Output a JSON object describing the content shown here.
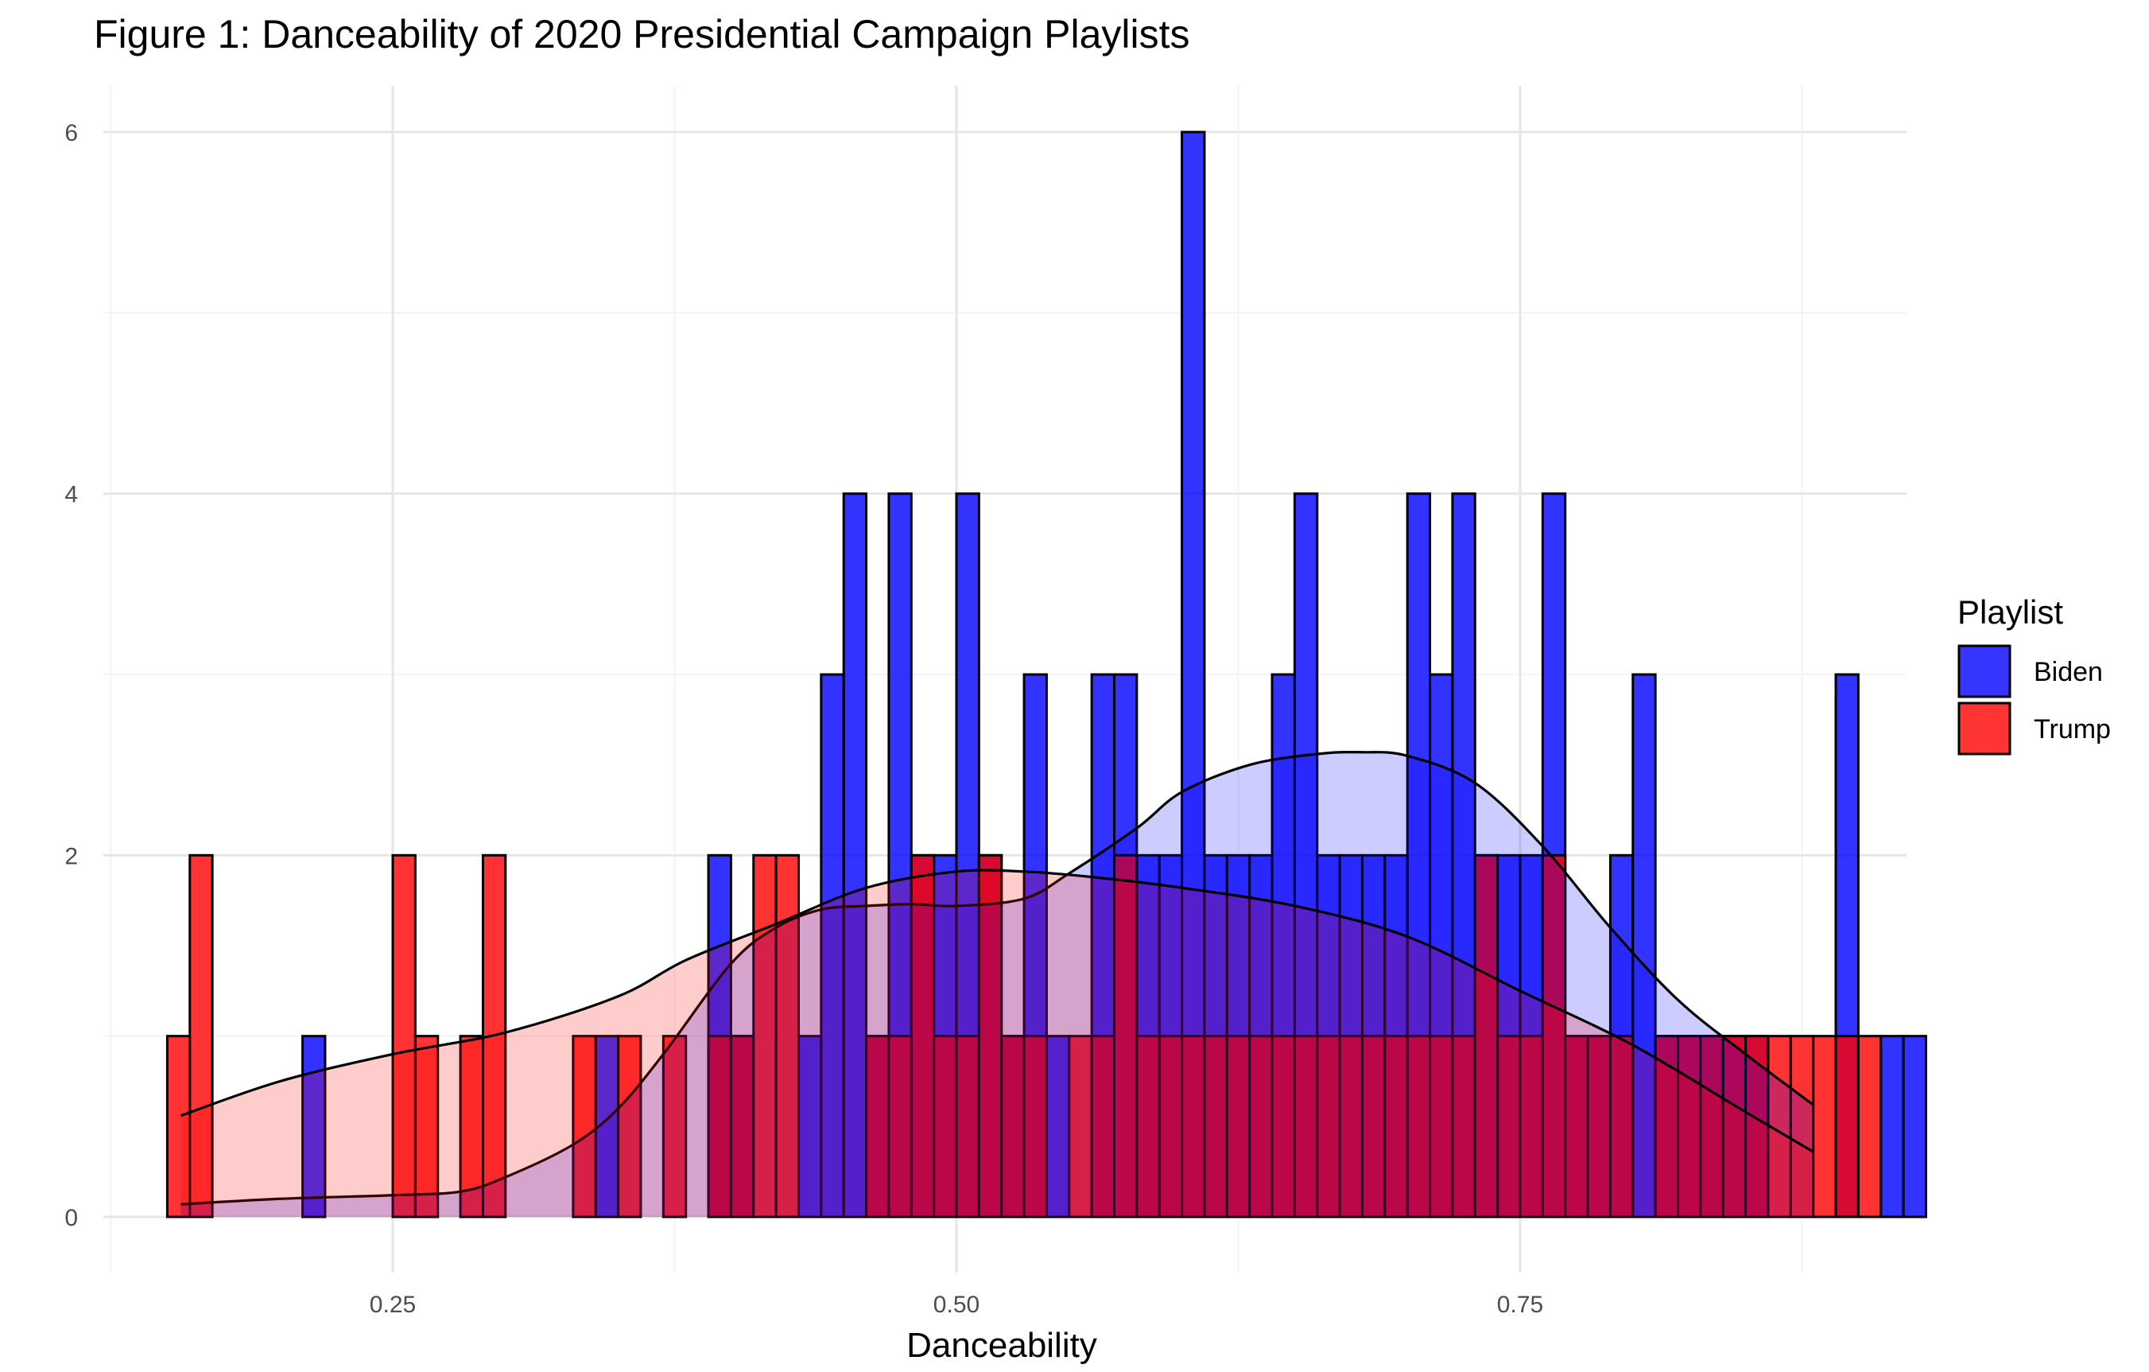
{
  "chart_data": {
    "type": "histogram",
    "title": "Figure 1: Danceability of 2020 Presidential Campaign Playlists",
    "xlabel": "Danceability",
    "ylabel": "",
    "xlim": [
      0.12,
      0.9
    ],
    "ylim": [
      0,
      6
    ],
    "x_ticks": [
      "0.25",
      "0.50",
      "0.75"
    ],
    "y_ticks": [
      "0",
      "2",
      "4",
      "6"
    ],
    "x_tick_values": [
      0.25,
      0.5,
      0.75
    ],
    "y_tick_values": [
      0,
      2,
      4,
      6
    ],
    "grid": true,
    "legend": {
      "title": "Playlist",
      "position": "right"
    },
    "bin_start": 0.15,
    "bin_width": 0.01,
    "series": [
      {
        "name": "Biden",
        "color": "#0000ff",
        "counts": [
          0,
          0,
          0,
          0,
          0,
          0,
          1,
          0,
          0,
          0,
          0,
          0,
          0,
          0,
          0,
          0,
          0,
          0,
          0,
          1,
          0,
          0,
          0,
          0,
          2,
          1,
          0,
          0,
          1,
          3,
          4,
          1,
          4,
          2,
          2,
          4,
          2,
          1,
          3,
          1,
          0,
          3,
          3,
          2,
          2,
          6,
          2,
          2,
          2,
          3,
          4,
          2,
          2,
          2,
          2,
          4,
          3,
          4,
          2,
          2,
          2,
          4,
          1,
          1,
          2,
          3,
          1,
          1,
          1,
          1,
          1,
          0,
          0,
          0,
          3,
          0,
          1,
          1
        ],
        "density_x": [
          0.156,
          0.2,
          0.25,
          0.28,
          0.3,
          0.33,
          0.35,
          0.37,
          0.4,
          0.42,
          0.44,
          0.46,
          0.48,
          0.5,
          0.53,
          0.55,
          0.58,
          0.6,
          0.63,
          0.66,
          0.68,
          0.7,
          0.73,
          0.76,
          0.79,
          0.82,
          0.85,
          0.88
        ],
        "density_y": [
          0.07,
          0.1,
          0.12,
          0.14,
          0.22,
          0.4,
          0.6,
          0.9,
          1.4,
          1.6,
          1.7,
          1.72,
          1.73,
          1.72,
          1.76,
          1.9,
          2.15,
          2.35,
          2.5,
          2.56,
          2.57,
          2.55,
          2.4,
          2.05,
          1.6,
          1.2,
          0.9,
          0.62
        ]
      },
      {
        "name": "Trump",
        "color": "#ff0000",
        "counts": [
          1,
          2,
          0,
          0,
          0,
          0,
          0,
          0,
          0,
          0,
          2,
          1,
          0,
          1,
          2,
          0,
          0,
          0,
          1,
          0,
          1,
          0,
          1,
          0,
          1,
          1,
          2,
          2,
          0,
          0,
          0,
          1,
          1,
          2,
          1,
          1,
          2,
          1,
          1,
          0,
          1,
          1,
          2,
          1,
          1,
          1,
          1,
          1,
          1,
          1,
          1,
          1,
          1,
          1,
          1,
          1,
          1,
          1,
          2,
          1,
          1,
          2,
          1,
          1,
          1,
          0,
          1,
          1,
          1,
          1,
          1,
          1,
          1,
          1,
          1,
          1,
          0,
          0
        ],
        "density_x": [
          0.156,
          0.2,
          0.25,
          0.3,
          0.35,
          0.38,
          0.42,
          0.46,
          0.5,
          0.53,
          0.56,
          0.6,
          0.65,
          0.7,
          0.75,
          0.8,
          0.85,
          0.88
        ],
        "density_y": [
          0.56,
          0.75,
          0.9,
          1.02,
          1.22,
          1.42,
          1.62,
          1.82,
          1.91,
          1.91,
          1.88,
          1.82,
          1.72,
          1.55,
          1.25,
          0.95,
          0.58,
          0.36
        ]
      }
    ]
  }
}
